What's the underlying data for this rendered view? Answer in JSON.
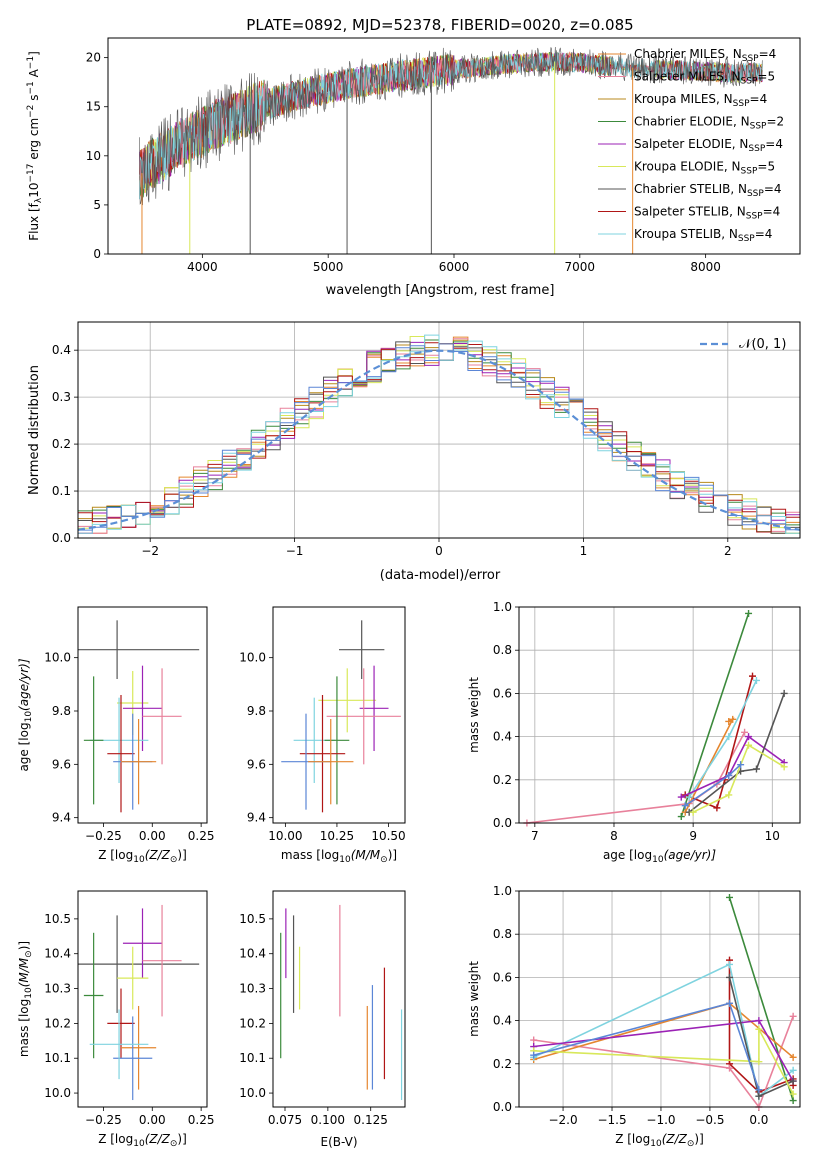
{
  "figure": {
    "title": "PLATE=0892, MJD=52378, FIBERID=0020, z=0.085"
  },
  "colors": {
    "chab_miles": "#e5862f",
    "salp_miles": "#e8819b",
    "krou_miles": "#b88a1c",
    "chab_elodie": "#3c8a3c",
    "salp_elodie": "#9b22b5",
    "krou_elodie": "#d8e85a",
    "chab_stelib": "#555555",
    "salp_stelib": "#b01616",
    "krou_stelib": "#7fd3df",
    "extra_blue": "#5b86d6",
    "gauss": "#5b8fd6"
  },
  "chart_data": [
    {
      "type": "line",
      "panel": "spectrum",
      "title": "PLATE=0892, MJD=52378, FIBERID=0020, z=0.085",
      "xlabel": "wavelength [Angstrom, rest frame]",
      "ylabel_main": "Flux [f",
      "ylabel_sub": "λ",
      "ylabel_rest": "10",
      "ylabel_exp": "−17",
      "ylabel_units": " erg cm",
      "ylabel_exp2": "−2",
      "ylabel_units2": " s",
      "ylabel_exp3": "−1",
      "ylabel_units3": " A",
      "ylabel_exp4": "−1",
      "ylabel_end": "]",
      "xlim": [
        3250,
        8750
      ],
      "ylim": [
        0,
        22
      ],
      "xticks": [
        "4000",
        "5000",
        "6000",
        "7000",
        "8000"
      ],
      "xtick_values": [
        4000,
        5000,
        6000,
        7000,
        8000
      ],
      "yticks": [
        "0",
        "5",
        "10",
        "15",
        "20"
      ],
      "ytick_values": [
        0,
        5,
        10,
        15,
        20
      ],
      "continuum": {
        "x": [
          3500,
          3600,
          3700,
          3800,
          3900,
          4000,
          4100,
          4200,
          4300,
          4400,
          4500,
          4600,
          4700,
          4800,
          4900,
          5000,
          5200,
          5400,
          5600,
          5800,
          6000,
          6200,
          6400,
          6600,
          6800,
          7000,
          7200,
          7400,
          7600,
          7800,
          8000,
          8200,
          8400
        ],
        "y": [
          8.0,
          9.2,
          10.0,
          11.0,
          11.8,
          12.4,
          13.2,
          13.6,
          14.2,
          14.8,
          15.2,
          15.6,
          16.0,
          16.3,
          16.6,
          16.9,
          17.4,
          17.8,
          18.2,
          18.5,
          18.8,
          19.0,
          19.3,
          19.5,
          19.6,
          19.5,
          19.2,
          19.0,
          18.8,
          18.7,
          18.6,
          18.4,
          18.5
        ]
      },
      "series": [
        {
          "name": "Chabrier MILES, N_SSP=4",
          "label": "Chabrier MILES, N",
          "sub": "SSP",
          "tail": "=4",
          "color": "#e5862f"
        },
        {
          "name": "Salpeter MILES, N_SSP=5",
          "label": "Salpeter MILES, N",
          "sub": "SSP",
          "tail": "=5",
          "color": "#e8819b"
        },
        {
          "name": "Kroupa MILES, N_SSP=4",
          "label": "Kroupa MILES, N",
          "sub": "SSP",
          "tail": "=4",
          "color": "#b88a1c"
        },
        {
          "name": "Chabrier ELODIE, N_SSP=2",
          "label": "Chabrier ELODIE, N",
          "sub": "SSP",
          "tail": "=2",
          "color": "#3c8a3c"
        },
        {
          "name": "Salpeter ELODIE, N_SSP=4",
          "label": "Salpeter ELODIE, N",
          "sub": "SSP",
          "tail": "=4",
          "color": "#9b22b5"
        },
        {
          "name": "Kroupa ELODIE, N_SSP=5",
          "label": "Kroupa ELODIE, N",
          "sub": "SSP",
          "tail": "=5",
          "color": "#d8e85a"
        },
        {
          "name": "Chabrier STELIB, N_SSP=4",
          "label": "Chabrier STELIB, N",
          "sub": "SSP",
          "tail": "=4",
          "color": "#555555"
        },
        {
          "name": "Salpeter STELIB, N_SSP=4",
          "label": "Salpeter STELIB, N",
          "sub": "SSP",
          "tail": "=4",
          "color": "#b01616"
        },
        {
          "name": "Kroupa STELIB, N_SSP=4",
          "label": "Kroupa STELIB, N",
          "sub": "SSP",
          "tail": "=4",
          "color": "#7fd3df"
        }
      ],
      "drops": [
        {
          "x": 3520,
          "color": "#e5862f"
        },
        {
          "x": 3900,
          "color": "#d8e85a"
        },
        {
          "x": 4380,
          "color": "#555555"
        },
        {
          "x": 5150,
          "color": "#555555"
        },
        {
          "x": 5820,
          "color": "#555555"
        },
        {
          "x": 6800,
          "color": "#d8e85a"
        },
        {
          "x": 7420,
          "color": "#e5862f"
        }
      ],
      "legend": "top-right"
    },
    {
      "type": "bar",
      "panel": "residual-histogram",
      "xlabel": "(data-model)/error",
      "ylabel": "Normed distribution",
      "xlim": [
        -2.5,
        2.5
      ],
      "ylim": [
        0,
        0.46
      ],
      "xticks": [
        "−2",
        "−1",
        "0",
        "1",
        "2"
      ],
      "xtick_values": [
        -2,
        -1,
        0,
        1,
        2
      ],
      "yticks": [
        "0.0",
        "0.1",
        "0.2",
        "0.3",
        "0.4"
      ],
      "ytick_values": [
        0,
        0.1,
        0.2,
        0.3,
        0.4
      ],
      "grid": true,
      "bin_width": 0.1,
      "gauss_label": "𝒩(0, 1)",
      "legend": "top-right"
    },
    {
      "type": "scatter",
      "panel": "age-vs-Z",
      "xlabel_pre": "Z [log",
      "xlabel_sub": "10",
      "xlabel_post": "(Z/Z",
      "xlabel_sun": "⊙",
      "xlabel_end": ")]",
      "ylabel_pre": "age  [log",
      "ylabel_sub": "10",
      "ylabel_post": "(age/yr)]",
      "xlim": [
        -0.38,
        0.28
      ],
      "ylim": [
        9.38,
        10.19
      ],
      "xticks": [
        "−0.25",
        "0.00",
        "0.25"
      ],
      "xtick_values": [
        -0.25,
        0.0,
        0.25
      ],
      "yticks": [
        "9.4",
        "9.6",
        "9.8",
        "10.0"
      ],
      "ytick_values": [
        9.4,
        9.6,
        9.8,
        10.0
      ],
      "points": [
        {
          "x": -0.18,
          "y": 10.03,
          "xerr": 0.42,
          "yerr": 0.11,
          "color": "#555555"
        },
        {
          "x": -0.1,
          "y": 9.83,
          "xerr": 0.08,
          "yerr": 0.12,
          "color": "#d8e85a"
        },
        {
          "x": -0.05,
          "y": 9.81,
          "xerr": 0.1,
          "yerr": 0.16,
          "color": "#9b22b5"
        },
        {
          "x": 0.05,
          "y": 9.78,
          "xerr": 0.1,
          "yerr": 0.18,
          "color": "#e8819b"
        },
        {
          "x": -0.17,
          "y": 9.69,
          "xerr": 0.15,
          "yerr": 0.16,
          "color": "#7fd3df"
        },
        {
          "x": -0.3,
          "y": 9.69,
          "xerr": 0.05,
          "yerr": 0.24,
          "color": "#3c8a3c"
        },
        {
          "x": -0.16,
          "y": 9.64,
          "xerr": 0.07,
          "yerr": 0.22,
          "color": "#b01616"
        },
        {
          "x": -0.1,
          "y": 9.61,
          "xerr": 0.1,
          "yerr": 0.18,
          "color": "#5b86d6"
        },
        {
          "x": -0.07,
          "y": 9.61,
          "xerr": 0.09,
          "yerr": 0.16,
          "color": "#e5862f"
        }
      ]
    },
    {
      "type": "scatter",
      "panel": "age-vs-mass",
      "xlabel_pre": "mass [log",
      "xlabel_sub": "10",
      "xlabel_post": "(M/M",
      "xlabel_sun": "⊙",
      "xlabel_end": ")]",
      "xlim": [
        9.94,
        10.58
      ],
      "ylim": [
        9.38,
        10.19
      ],
      "xticks": [
        "10.00",
        "10.25",
        "10.50"
      ],
      "xtick_values": [
        10.0,
        10.25,
        10.5
      ],
      "yticks": [
        "9.4",
        "9.6",
        "9.8",
        "10.0"
      ],
      "ytick_values": [
        9.4,
        9.6,
        9.8,
        10.0
      ],
      "points": [
        {
          "x": 10.37,
          "y": 10.03,
          "xerr": 0.11,
          "yerr": 0.11,
          "color": "#555555"
        },
        {
          "x": 10.3,
          "y": 9.84,
          "xerr": 0.14,
          "yerr": 0.12,
          "color": "#d8e85a"
        },
        {
          "x": 10.43,
          "y": 9.81,
          "xerr": 0.07,
          "yerr": 0.16,
          "color": "#9b22b5"
        },
        {
          "x": 10.38,
          "y": 9.78,
          "xerr": 0.18,
          "yerr": 0.18,
          "color": "#e8819b"
        },
        {
          "x": 10.14,
          "y": 9.69,
          "xerr": 0.1,
          "yerr": 0.16,
          "color": "#7fd3df"
        },
        {
          "x": 10.25,
          "y": 9.69,
          "xerr": 0.06,
          "yerr": 0.24,
          "color": "#3c8a3c"
        },
        {
          "x": 10.18,
          "y": 9.64,
          "xerr": 0.11,
          "yerr": 0.22,
          "color": "#b01616"
        },
        {
          "x": 10.1,
          "y": 9.61,
          "xerr": 0.12,
          "yerr": 0.18,
          "color": "#5b86d6"
        },
        {
          "x": 10.22,
          "y": 9.61,
          "xerr": 0.11,
          "yerr": 0.16,
          "color": "#e5862f"
        }
      ]
    },
    {
      "type": "line",
      "panel": "mass-weight-vs-age",
      "xlabel_pre": "age  [log",
      "xlabel_sub": "10",
      "xlabel_post": "(age/yr)]",
      "ylabel": "mass weight",
      "xlim": [
        6.8,
        10.35
      ],
      "ylim": [
        0,
        1.0
      ],
      "xticks": [
        "7",
        "8",
        "9",
        "10"
      ],
      "xtick_values": [
        7,
        8,
        9,
        10
      ],
      "yticks": [
        "0.0",
        "0.2",
        "0.4",
        "0.6",
        "0.8",
        "1.0"
      ],
      "ytick_values": [
        0,
        0.2,
        0.4,
        0.6,
        0.8,
        1.0
      ],
      "grid": true,
      "series": [
        {
          "color": "#e8819b",
          "x": [
            6.9,
            8.95,
            9.3,
            9.65
          ],
          "y": [
            0.0,
            0.09,
            0.18,
            0.42
          ]
        },
        {
          "color": "#3c8a3c",
          "x": [
            8.85,
            9.7
          ],
          "y": [
            0.03,
            0.97
          ]
        },
        {
          "color": "#b01616",
          "x": [
            8.9,
            9.3,
            9.4,
            9.75
          ],
          "y": [
            0.13,
            0.07,
            0.2,
            0.68
          ]
        },
        {
          "color": "#e5862f",
          "x": [
            8.9,
            9.5,
            9.45
          ],
          "y": [
            0.05,
            0.48,
            0.47
          ]
        },
        {
          "color": "#7fd3df",
          "x": [
            8.95,
            9.45,
            9.8
          ],
          "y": [
            0.12,
            0.4,
            0.66
          ]
        },
        {
          "color": "#9b22b5",
          "x": [
            8.85,
            9.45,
            9.7,
            10.15
          ],
          "y": [
            0.12,
            0.22,
            0.4,
            0.28
          ]
        },
        {
          "color": "#555555",
          "x": [
            8.95,
            9.6,
            9.8,
            10.15
          ],
          "y": [
            0.05,
            0.24,
            0.25,
            0.6
          ]
        },
        {
          "color": "#d8e85a",
          "x": [
            9.0,
            9.45,
            9.7,
            10.15
          ],
          "y": [
            0.05,
            0.13,
            0.36,
            0.26
          ]
        },
        {
          "color": "#5b86d6",
          "x": [
            8.9,
            9.45,
            9.6
          ],
          "y": [
            0.08,
            0.22,
            0.27
          ]
        }
      ]
    },
    {
      "type": "scatter",
      "panel": "mass-vs-Z",
      "xlabel_pre": "Z [log",
      "xlabel_sub": "10",
      "xlabel_post": "(Z/Z",
      "xlabel_sun": "⊙",
      "xlabel_end": ")]",
      "ylabel_pre": "mass [log",
      "ylabel_sub": "10",
      "ylabel_post": "(M/M",
      "ylabel_sun": "⊙",
      "ylabel_end": ")]",
      "xlim": [
        -0.38,
        0.28
      ],
      "ylim": [
        9.96,
        10.58
      ],
      "xticks": [
        "−0.25",
        "0.00",
        "0.25"
      ],
      "xtick_values": [
        -0.25,
        0.0,
        0.25
      ],
      "yticks": [
        "10.0",
        "10.1",
        "10.2",
        "10.3",
        "10.4",
        "10.5"
      ],
      "ytick_values": [
        10.0,
        10.1,
        10.2,
        10.3,
        10.4,
        10.5
      ],
      "points": [
        {
          "x": -0.18,
          "y": 10.37,
          "xerr": 0.42,
          "yerr": 0.14,
          "color": "#555555"
        },
        {
          "x": -0.05,
          "y": 10.43,
          "xerr": 0.1,
          "yerr": 0.1,
          "color": "#9b22b5"
        },
        {
          "x": -0.1,
          "y": 10.33,
          "xerr": 0.08,
          "yerr": 0.09,
          "color": "#d8e85a"
        },
        {
          "x": 0.05,
          "y": 10.38,
          "xerr": 0.1,
          "yerr": 0.16,
          "color": "#e8819b"
        },
        {
          "x": -0.3,
          "y": 10.28,
          "xerr": 0.05,
          "yerr": 0.18,
          "color": "#3c8a3c"
        },
        {
          "x": -0.16,
          "y": 10.2,
          "xerr": 0.07,
          "yerr": 0.1,
          "color": "#b01616"
        },
        {
          "x": -0.07,
          "y": 10.13,
          "xerr": 0.09,
          "yerr": 0.12,
          "color": "#e5862f"
        },
        {
          "x": -0.1,
          "y": 10.1,
          "xerr": 0.1,
          "yerr": 0.12,
          "color": "#5b86d6"
        },
        {
          "x": -0.17,
          "y": 10.14,
          "xerr": 0.15,
          "yerr": 0.1,
          "color": "#7fd3df"
        }
      ]
    },
    {
      "type": "scatter",
      "panel": "mass-vs-EBV",
      "xlabel": "E(B-V)",
      "xlim": [
        0.068,
        0.145
      ],
      "ylim": [
        9.96,
        10.58
      ],
      "xticks": [
        "0.075",
        "0.100",
        "0.125"
      ],
      "xtick_values": [
        0.075,
        0.1,
        0.125
      ],
      "yticks": [
        "10.0",
        "10.1",
        "10.2",
        "10.3",
        "10.4",
        "10.5"
      ],
      "ytick_values": [
        10.0,
        10.1,
        10.2,
        10.3,
        10.4,
        10.5
      ],
      "points": [
        {
          "x": 0.0725,
          "y": 10.28,
          "yerr": 0.18,
          "color": "#3c8a3c"
        },
        {
          "x": 0.0755,
          "y": 10.43,
          "yerr": 0.1,
          "color": "#9b22b5"
        },
        {
          "x": 0.08,
          "y": 10.37,
          "yerr": 0.14,
          "color": "#555555"
        },
        {
          "x": 0.0835,
          "y": 10.33,
          "yerr": 0.09,
          "color": "#d8e85a"
        },
        {
          "x": 0.107,
          "y": 10.38,
          "yerr": 0.16,
          "color": "#e8819b"
        },
        {
          "x": 0.123,
          "y": 10.13,
          "yerr": 0.12,
          "color": "#e5862f"
        },
        {
          "x": 0.126,
          "y": 10.16,
          "yerr": 0.15,
          "color": "#5b86d6"
        },
        {
          "x": 0.133,
          "y": 10.2,
          "yerr": 0.16,
          "color": "#b01616"
        },
        {
          "x": 0.143,
          "y": 10.11,
          "yerr": 0.13,
          "color": "#7fd3df"
        }
      ]
    },
    {
      "type": "line",
      "panel": "mass-weight-vs-Z",
      "xlabel_pre": "Z [log",
      "xlabel_sub": "10",
      "xlabel_post": "(Z/Z",
      "xlabel_sun": "⊙",
      "xlabel_end": ")]",
      "ylabel": "mass weight",
      "xlim": [
        -2.45,
        0.42
      ],
      "ylim": [
        0,
        1.0
      ],
      "xticks": [
        "−2.0",
        "−1.5",
        "−1.0",
        "−0.5",
        "0.0"
      ],
      "xtick_values": [
        -2.0,
        -1.5,
        -1.0,
        -0.5,
        0.0
      ],
      "yticks": [
        "0.0",
        "0.2",
        "0.4",
        "0.6",
        "0.8",
        "1.0"
      ],
      "ytick_values": [
        0,
        0.2,
        0.4,
        0.6,
        0.8,
        1.0
      ],
      "grid": true,
      "series": [
        {
          "color": "#3c8a3c",
          "x": [
            -0.3,
            0.35
          ],
          "y": [
            0.97,
            0.03
          ]
        },
        {
          "color": "#b01616",
          "x": [
            -0.3,
            -0.3,
            0.0,
            0.35,
            0.35
          ],
          "y": [
            0.68,
            0.2,
            0.07,
            0.13,
            0.1
          ]
        },
        {
          "color": "#e8819b",
          "x": [
            -2.3,
            -0.3,
            0.0,
            0.35
          ],
          "y": [
            0.31,
            0.18,
            0.0,
            0.42
          ]
        },
        {
          "color": "#e5862f",
          "x": [
            -2.3,
            -0.3,
            0.35
          ],
          "y": [
            0.22,
            0.48,
            0.23
          ]
        },
        {
          "color": "#7fd3df",
          "x": [
            -2.3,
            -0.3,
            0.0,
            0.35
          ],
          "y": [
            0.23,
            0.66,
            0.05,
            0.17
          ]
        },
        {
          "color": "#9b22b5",
          "x": [
            -2.3,
            0.0,
            0.35
          ],
          "y": [
            0.28,
            0.4,
            0.12
          ]
        },
        {
          "color": "#555555",
          "x": [
            -0.3,
            0.0,
            0.35
          ],
          "y": [
            0.6,
            0.05,
            0.12
          ]
        },
        {
          "color": "#d8e85a",
          "x": [
            -2.3,
            0.0,
            0.0,
            0.35
          ],
          "y": [
            0.26,
            0.21,
            0.36,
            0.06
          ]
        },
        {
          "color": "#5b86d6",
          "x": [
            -2.3,
            -0.3,
            0.0
          ],
          "y": [
            0.24,
            0.48,
            0.08
          ]
        }
      ]
    }
  ]
}
